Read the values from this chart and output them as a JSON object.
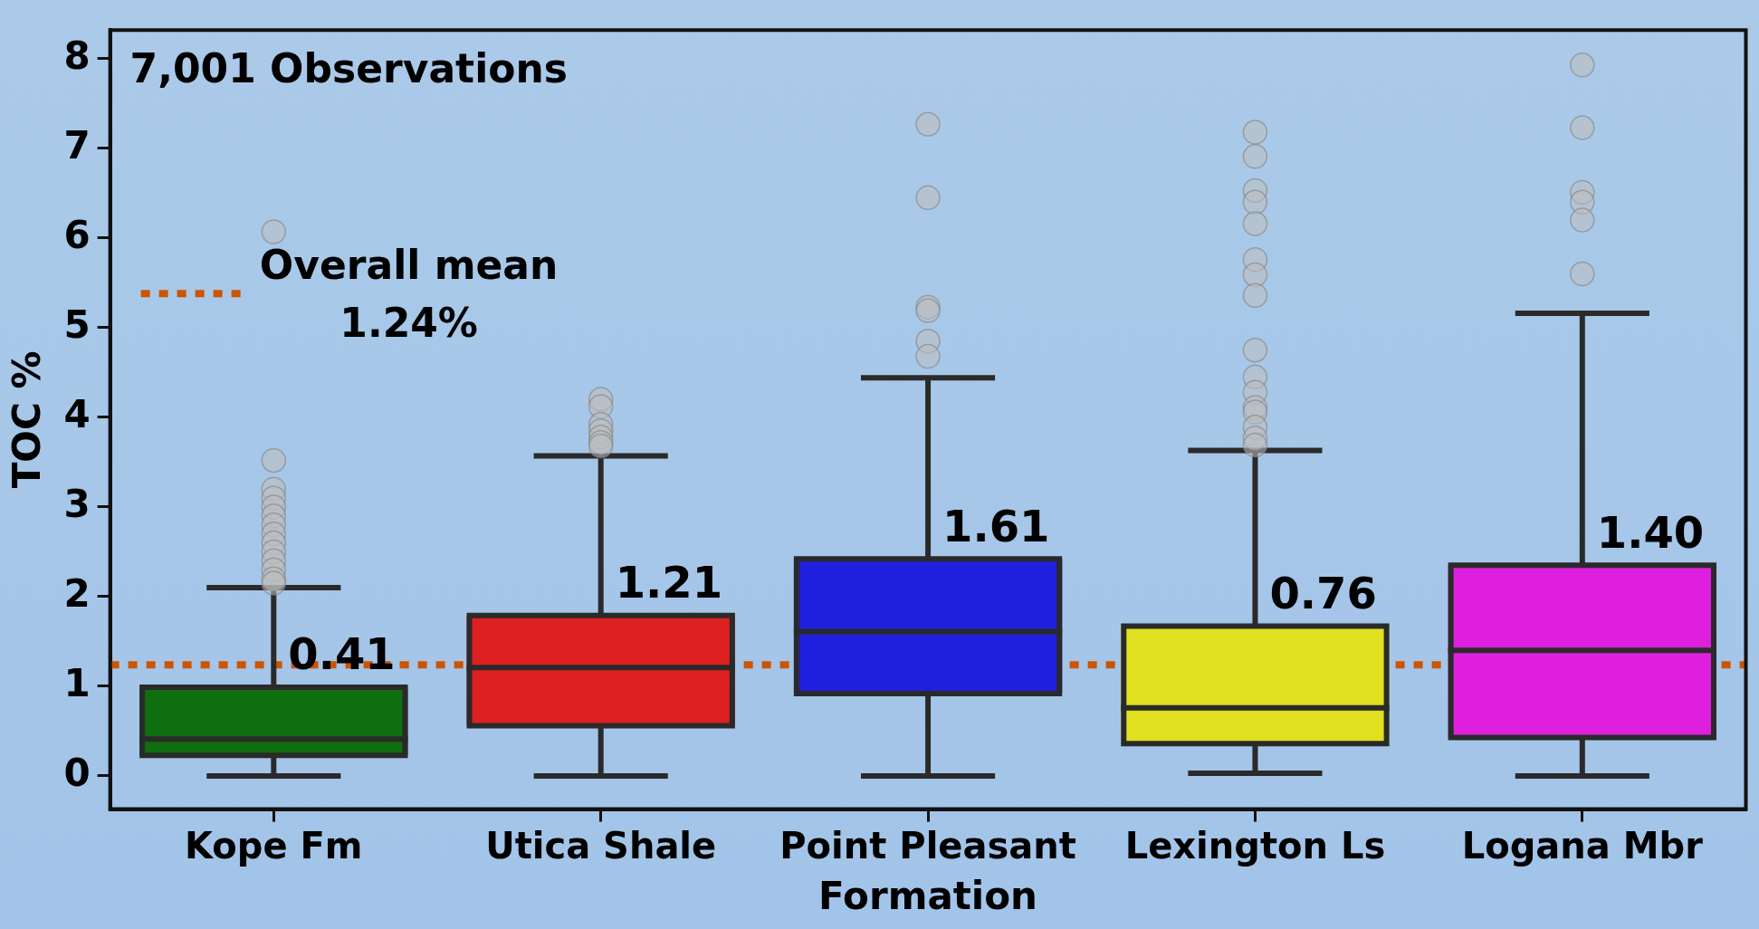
{
  "chart_data": {
    "type": "box",
    "xlabel": "Formation",
    "ylabel": "TOC %",
    "categories": [
      "Kope Fm",
      "Utica Shale",
      "Point Pleasant",
      "Lexington Ls",
      "Logana Mbr"
    ],
    "colors": [
      "#0f6e0f",
      "#de2020",
      "#1f20de",
      "#e0e020",
      "#de20de"
    ],
    "boxes": [
      {
        "low": 0,
        "q1": 0.23,
        "median": 0.41,
        "q3": 0.99,
        "high": 2.1,
        "outliers": [
          6.07,
          3.52,
          3.2,
          3.1,
          3.0,
          2.9,
          2.8,
          2.7,
          2.6,
          2.5,
          2.4,
          2.3,
          2.2,
          2.15
        ]
      },
      {
        "low": 0,
        "q1": 0.56,
        "median": 1.21,
        "q3": 1.79,
        "high": 3.57,
        "outliers": [
          4.2,
          4.12,
          3.92,
          3.85,
          3.78,
          3.72,
          3.68
        ]
      },
      {
        "low": 0,
        "q1": 0.92,
        "median": 1.61,
        "q3": 2.42,
        "high": 4.44,
        "outliers": [
          7.27,
          6.45,
          5.23,
          5.19,
          4.85,
          4.68
        ]
      },
      {
        "low": 0.03,
        "q1": 0.36,
        "median": 0.76,
        "q3": 1.67,
        "high": 3.63,
        "outliers": [
          7.18,
          6.91,
          6.53,
          6.4,
          6.16,
          5.76,
          5.59,
          5.36,
          4.75,
          4.45,
          4.28,
          4.11,
          4.06,
          3.89,
          3.77,
          3.69
        ]
      },
      {
        "low": 0,
        "q1": 0.43,
        "median": 1.4,
        "q3": 2.35,
        "high": 5.16,
        "outliers": [
          7.93,
          7.23,
          6.51,
          6.4,
          6.2,
          5.6
        ]
      }
    ],
    "value_labels": [
      "0.41",
      "1.21",
      "1.61",
      "0.76",
      "1.40"
    ],
    "ylim": [
      -0.37,
      8.32
    ],
    "yticks": [
      0,
      1,
      2,
      3,
      4,
      5,
      6,
      7,
      8
    ],
    "ref_lines": [
      {
        "axis": "y",
        "value": 1.24,
        "label": "Overall mean\n1.24%",
        "color": "#cc5500",
        "line_style": "dotted"
      }
    ],
    "annotations": [
      "7,001 Observations"
    ],
    "marker": "circle"
  }
}
